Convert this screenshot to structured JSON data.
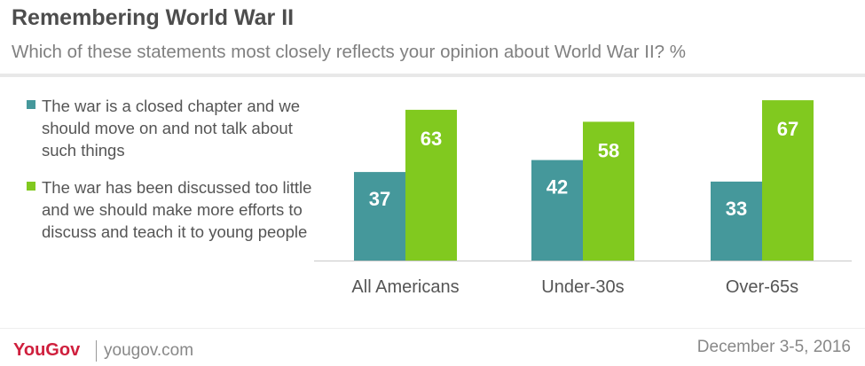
{
  "header": {
    "title": "Remembering World War II",
    "subtitle": "Which of these statements most closely reflects your opinion about World War II? %"
  },
  "legend": [
    {
      "label": "The war is a closed chapter and we should move on and not talk about such things",
      "color": "#45989b"
    },
    {
      "label": "The war has been discussed too little and we should make more efforts to discuss and teach it to young people",
      "color": "#81c91f"
    }
  ],
  "chart_data": {
    "type": "bar",
    "categories": [
      "All Americans",
      "Under-30s",
      "Over-65s"
    ],
    "series": [
      {
        "name": "The war is a closed chapter and we should move on and not talk about such things",
        "values": [
          37,
          42,
          33
        ],
        "color": "#45989b"
      },
      {
        "name": "The war has been discussed too little and we should make more efforts to discuss and teach it to young people",
        "values": [
          63,
          58,
          67
        ],
        "color": "#81c91f"
      }
    ],
    "ylim": [
      0,
      100
    ],
    "grid": false,
    "legend_position": "left",
    "data_labels": true
  },
  "footer": {
    "logo": "YouGov",
    "website": "yougov.com",
    "date": "December 3-5, 2016"
  }
}
